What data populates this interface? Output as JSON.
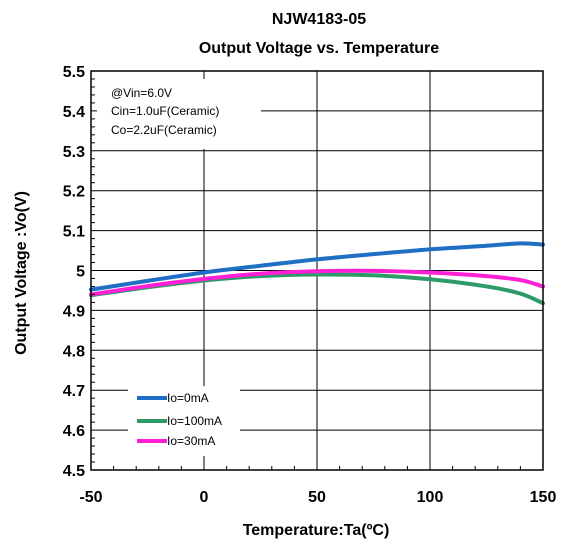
{
  "chart_data": {
    "type": "line",
    "title": "NJW4183-05",
    "subtitle": "Output Voltage vs. Temperature",
    "xlabel": "Temperature:Ta(ºC)",
    "ylabel": "Output Voltage :Vo(V)",
    "xlim": [
      -50,
      150
    ],
    "ylim": [
      4.5,
      5.5
    ],
    "xticks": [
      -50,
      0,
      50,
      100,
      150
    ],
    "yticks": [
      4.5,
      4.6,
      4.7,
      4.8,
      4.9,
      5.0,
      5.1,
      5.2,
      5.3,
      5.4,
      5.5
    ],
    "xtick_labels": [
      "-50",
      "0",
      "50",
      "100",
      "150"
    ],
    "ytick_labels": [
      "4.5",
      "4.6",
      "4.7",
      "4.8",
      "4.9",
      "5",
      "5.1",
      "5.2",
      "5.3",
      "5.4",
      "5.5"
    ],
    "grid": true,
    "legend_position": "bottom-left",
    "annotations": [
      "@Vin=6.0V",
      "Cin=1.0uF(Ceramic)",
      "Co=2.2uF(Ceramic)"
    ],
    "series": [
      {
        "name": "Io=0mA",
        "color": "#1f6fc5",
        "x": [
          -50,
          -25,
          0,
          25,
          50,
          75,
          100,
          125,
          140,
          150
        ],
        "values": [
          4.952,
          4.974,
          4.995,
          5.012,
          5.028,
          5.041,
          5.053,
          5.062,
          5.068,
          5.065
        ]
      },
      {
        "name": "Io=100mA",
        "color": "#2e9a68",
        "x": [
          -50,
          -25,
          0,
          25,
          50,
          75,
          100,
          125,
          140,
          150
        ],
        "values": [
          4.938,
          4.958,
          4.975,
          4.986,
          4.99,
          4.988,
          4.978,
          4.96,
          4.942,
          4.918
        ]
      },
      {
        "name": "Io=30mA",
        "color": "#ff1fd6",
        "x": [
          -50,
          -25,
          0,
          25,
          50,
          75,
          100,
          125,
          140,
          150
        ],
        "values": [
          4.94,
          4.961,
          4.979,
          4.992,
          4.998,
          4.999,
          4.995,
          4.986,
          4.976,
          4.96
        ]
      }
    ]
  }
}
